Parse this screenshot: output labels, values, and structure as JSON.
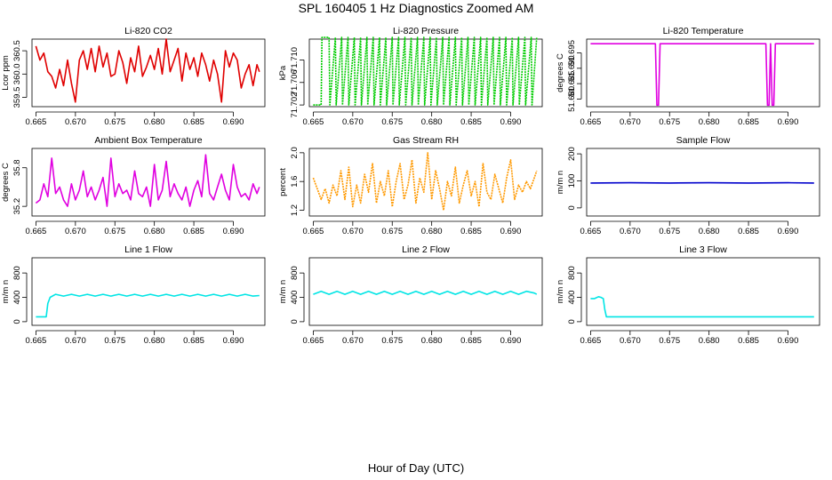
{
  "title": "SPL  160405  1 Hz Diagnostics Zoomed AM",
  "xlabel": "Hour of Day (UTC)",
  "chart_data": [
    {
      "type": "line",
      "title": "Li-820 CO2",
      "ylabel": "Lcor ppm",
      "color": "#e00000",
      "ylim": [
        359.3,
        360.75
      ],
      "yticks": [
        "359.5",
        "360.0",
        "360.5"
      ],
      "ytick_values": [
        359.5,
        360.0,
        360.5
      ],
      "xlim": [
        0.6645,
        0.694
      ],
      "xticks": [
        "0.665",
        "0.670",
        "0.675",
        "0.680",
        "0.685",
        "0.690"
      ],
      "xtick_values": [
        0.665,
        0.67,
        0.675,
        0.68,
        0.685,
        0.69
      ],
      "x": [
        0.665,
        0.6655,
        0.666,
        0.6665,
        0.667,
        0.6675,
        0.668,
        0.6685,
        0.669,
        0.6695,
        0.67,
        0.6705,
        0.671,
        0.6715,
        0.672,
        0.6725,
        0.673,
        0.6735,
        0.674,
        0.6745,
        0.675,
        0.6755,
        0.676,
        0.6765,
        0.677,
        0.6775,
        0.678,
        0.6785,
        0.679,
        0.6795,
        0.68,
        0.6805,
        0.681,
        0.6815,
        0.682,
        0.6825,
        0.683,
        0.6835,
        0.684,
        0.6845,
        0.685,
        0.6855,
        0.686,
        0.6865,
        0.687,
        0.6875,
        0.688,
        0.6885,
        0.689,
        0.6895,
        0.69,
        0.6905,
        0.691,
        0.6915,
        0.692,
        0.6925,
        0.693,
        0.6933
      ],
      "y": [
        360.6,
        360.3,
        360.45,
        360.05,
        359.95,
        359.7,
        360.1,
        359.75,
        360.3,
        359.8,
        359.4,
        360.3,
        360.5,
        360.1,
        360.55,
        360.05,
        360.6,
        360.15,
        360.45,
        359.95,
        360.0,
        360.5,
        360.25,
        359.8,
        360.35,
        360.05,
        360.6,
        359.95,
        360.15,
        360.4,
        360.1,
        360.55,
        360.0,
        360.75,
        360.05,
        360.3,
        360.55,
        359.85,
        360.45,
        360.1,
        360.35,
        359.95,
        360.45,
        360.2,
        359.85,
        360.3,
        360.0,
        359.4,
        360.5,
        360.15,
        360.45,
        360.3,
        359.7,
        360.0,
        360.2,
        359.75,
        360.2,
        360.05
      ]
    },
    {
      "type": "line",
      "title": "Li-820 Pressure",
      "ylabel": "kPa",
      "color": "#00cc00",
      "dashed": true,
      "ylim": [
        71.7017,
        71.7137
      ],
      "yticks": [
        "71.702",
        "71.706",
        "71.710"
      ],
      "ytick_values": [
        71.702,
        71.706,
        71.71
      ],
      "xlim": [
        0.6645,
        0.694
      ],
      "xticks": [
        "0.665",
        "0.670",
        "0.675",
        "0.680",
        "0.685",
        "0.690"
      ],
      "xtick_values": [
        0.665,
        0.67,
        0.675,
        0.68,
        0.685,
        0.69
      ],
      "x": [
        0.665,
        0.666,
        0.6661,
        0.667,
        0.6671,
        0.6678,
        0.6679,
        0.6686,
        0.6687,
        0.6694,
        0.6695,
        0.6702,
        0.6703,
        0.671,
        0.6711,
        0.6718,
        0.6719,
        0.6726,
        0.6727,
        0.6734,
        0.6735,
        0.6742,
        0.6743,
        0.675,
        0.6751,
        0.6758,
        0.6759,
        0.6766,
        0.6767,
        0.6774,
        0.6775,
        0.6782,
        0.6783,
        0.679,
        0.6791,
        0.6798,
        0.6799,
        0.6806,
        0.6807,
        0.6814,
        0.6815,
        0.6822,
        0.6823,
        0.683,
        0.6831,
        0.6838,
        0.6839,
        0.6846,
        0.6847,
        0.6854,
        0.6855,
        0.6862,
        0.6863,
        0.687,
        0.6871,
        0.6878,
        0.6879,
        0.6886,
        0.6887,
        0.6894,
        0.6895,
        0.6902,
        0.6903,
        0.691,
        0.6911,
        0.6918,
        0.6919,
        0.6926,
        0.6927,
        0.6933
      ],
      "y": [
        71.702,
        71.702,
        71.714,
        71.714,
        71.702,
        71.714,
        71.702,
        71.714,
        71.702,
        71.714,
        71.702,
        71.714,
        71.702,
        71.714,
        71.702,
        71.714,
        71.702,
        71.714,
        71.702,
        71.714,
        71.702,
        71.714,
        71.702,
        71.714,
        71.702,
        71.714,
        71.702,
        71.714,
        71.702,
        71.714,
        71.702,
        71.714,
        71.702,
        71.714,
        71.702,
        71.714,
        71.702,
        71.714,
        71.702,
        71.714,
        71.702,
        71.714,
        71.702,
        71.714,
        71.702,
        71.714,
        71.702,
        71.714,
        71.702,
        71.714,
        71.702,
        71.714,
        71.702,
        71.714,
        71.702,
        71.714,
        71.702,
        71.714,
        71.702,
        71.714,
        71.702,
        71.714,
        71.702,
        71.714,
        71.702,
        71.714,
        71.702,
        71.714,
        71.702,
        71.714
      ]
    },
    {
      "type": "line",
      "title": "Li-820 Temperature",
      "ylabel": "degrees C",
      "color": "#e000e0",
      "ylim": [
        51.6775,
        51.6995
      ],
      "yticks": [
        "51.680",
        "51.685",
        "51.690",
        "51.695"
      ],
      "ytick_values": [
        51.68,
        51.685,
        51.69,
        51.695
      ],
      "xlim": [
        0.6645,
        0.694
      ],
      "xticks": [
        "0.665",
        "0.670",
        "0.675",
        "0.680",
        "0.685",
        "0.690"
      ],
      "xtick_values": [
        0.665,
        0.67,
        0.675,
        0.68,
        0.685,
        0.69
      ],
      "x": [
        0.665,
        0.6732,
        0.6734,
        0.6736,
        0.6738,
        0.674,
        0.6872,
        0.6874,
        0.6876,
        0.6878,
        0.688,
        0.6882,
        0.6884,
        0.6933
      ],
      "y": [
        51.698,
        51.698,
        51.678,
        51.678,
        51.698,
        51.698,
        51.698,
        51.678,
        51.678,
        51.698,
        51.678,
        51.678,
        51.698,
        51.698
      ]
    },
    {
      "type": "line",
      "title": "Ambient Box Temperature",
      "ylabel": "degrees C",
      "color": "#e000e0",
      "ylim": [
        35.05,
        36.1
      ],
      "yticks": [
        "35.2",
        "35.8"
      ],
      "ytick_values": [
        35.2,
        35.8
      ],
      "xlim": [
        0.6645,
        0.694
      ],
      "xticks": [
        "0.665",
        "0.670",
        "0.675",
        "0.680",
        "0.685",
        "0.690"
      ],
      "xtick_values": [
        0.665,
        0.67,
        0.675,
        0.68,
        0.685,
        0.69
      ],
      "x": [
        0.665,
        0.6655,
        0.666,
        0.6665,
        0.667,
        0.6675,
        0.668,
        0.6685,
        0.669,
        0.6695,
        0.67,
        0.6705,
        0.671,
        0.6715,
        0.672,
        0.6725,
        0.673,
        0.6735,
        0.674,
        0.6745,
        0.675,
        0.6755,
        0.676,
        0.6765,
        0.677,
        0.6775,
        0.678,
        0.6785,
        0.679,
        0.6795,
        0.68,
        0.6805,
        0.681,
        0.6815,
        0.682,
        0.6825,
        0.683,
        0.6835,
        0.684,
        0.6845,
        0.685,
        0.6855,
        0.686,
        0.6865,
        0.687,
        0.6875,
        0.688,
        0.6885,
        0.689,
        0.6895,
        0.69,
        0.6905,
        0.691,
        0.6915,
        0.692,
        0.6925,
        0.693,
        0.6933
      ],
      "y": [
        35.25,
        35.3,
        35.55,
        35.35,
        35.95,
        35.4,
        35.5,
        35.3,
        35.2,
        35.55,
        35.3,
        35.45,
        35.75,
        35.35,
        35.5,
        35.3,
        35.45,
        35.65,
        35.2,
        35.95,
        35.35,
        35.55,
        35.4,
        35.45,
        35.3,
        35.75,
        35.4,
        35.35,
        35.5,
        35.2,
        35.85,
        35.3,
        35.45,
        35.9,
        35.35,
        35.55,
        35.4,
        35.3,
        35.5,
        35.2,
        35.45,
        35.6,
        35.35,
        36.0,
        35.4,
        35.3,
        35.5,
        35.7,
        35.45,
        35.3,
        35.85,
        35.5,
        35.35,
        35.4,
        35.3,
        35.55,
        35.4,
        35.5
      ]
    },
    {
      "type": "line",
      "title": "Gas Stream RH",
      "ylabel": "percent",
      "color": "#ff9900",
      "dashed": true,
      "ylim": [
        1.12,
        2.06
      ],
      "yticks": [
        "1.2",
        "1.6",
        "2.0"
      ],
      "ytick_values": [
        1.2,
        1.6,
        2.0
      ],
      "xlim": [
        0.6645,
        0.694
      ],
      "xticks": [
        "0.665",
        "0.670",
        "0.675",
        "0.680",
        "0.685",
        "0.690"
      ],
      "xtick_values": [
        0.665,
        0.67,
        0.675,
        0.68,
        0.685,
        0.69
      ],
      "x": [
        0.665,
        0.6655,
        0.666,
        0.6665,
        0.667,
        0.6675,
        0.668,
        0.6685,
        0.669,
        0.6695,
        0.67,
        0.6705,
        0.671,
        0.6715,
        0.672,
        0.6725,
        0.673,
        0.6735,
        0.674,
        0.6745,
        0.675,
        0.6755,
        0.676,
        0.6765,
        0.677,
        0.6775,
        0.678,
        0.6785,
        0.679,
        0.6795,
        0.68,
        0.6805,
        0.681,
        0.6815,
        0.682,
        0.6825,
        0.683,
        0.6835,
        0.684,
        0.6845,
        0.685,
        0.6855,
        0.686,
        0.6865,
        0.687,
        0.6875,
        0.688,
        0.6885,
        0.689,
        0.6895,
        0.69,
        0.6905,
        0.691,
        0.6915,
        0.692,
        0.6925,
        0.693,
        0.6933
      ],
      "y": [
        1.65,
        1.5,
        1.35,
        1.5,
        1.3,
        1.55,
        1.4,
        1.75,
        1.35,
        1.8,
        1.25,
        1.55,
        1.3,
        1.7,
        1.45,
        1.85,
        1.3,
        1.6,
        1.4,
        1.75,
        1.25,
        1.6,
        1.85,
        1.35,
        1.55,
        1.9,
        1.3,
        1.65,
        1.45,
        2.0,
        1.35,
        1.75,
        1.5,
        1.2,
        1.6,
        1.4,
        1.8,
        1.3,
        1.55,
        1.75,
        1.4,
        1.6,
        1.25,
        1.85,
        1.45,
        1.35,
        1.7,
        1.5,
        1.3,
        1.65,
        1.9,
        1.35,
        1.55,
        1.45,
        1.6,
        1.5,
        1.65,
        1.75
      ]
    },
    {
      "type": "line",
      "title": "Sample Flow",
      "ylabel": "m/m n",
      "color": "#0000cc",
      "ylim": [
        -30,
        220
      ],
      "yticks": [
        "0",
        "100",
        "200"
      ],
      "ytick_values": [
        0,
        100,
        200
      ],
      "xlim": [
        0.6645,
        0.694
      ],
      "xticks": [
        "0.665",
        "0.670",
        "0.675",
        "0.680",
        "0.685",
        "0.690"
      ],
      "xtick_values": [
        0.665,
        0.67,
        0.675,
        0.68,
        0.685,
        0.69
      ],
      "x": [
        0.665,
        0.67,
        0.675,
        0.68,
        0.685,
        0.69,
        0.6933
      ],
      "y": [
        92,
        93,
        92,
        93,
        92,
        93,
        92
      ]
    },
    {
      "type": "line",
      "title": "Line 1 Flow",
      "ylabel": "m/m n",
      "color": "#00e5e5",
      "ylim": [
        -60,
        1050
      ],
      "yticks": [
        "0",
        "400",
        "800"
      ],
      "ytick_values": [
        0,
        400,
        800
      ],
      "xlim": [
        0.6645,
        0.694
      ],
      "xticks": [
        "0.665",
        "0.670",
        "0.675",
        "0.680",
        "0.685",
        "0.690"
      ],
      "xtick_values": [
        0.665,
        0.67,
        0.675,
        0.68,
        0.685,
        0.69
      ],
      "x": [
        0.665,
        0.6663,
        0.6665,
        0.6668,
        0.6675,
        0.6685,
        0.6695,
        0.6705,
        0.6715,
        0.6725,
        0.6735,
        0.6745,
        0.6755,
        0.6765,
        0.6775,
        0.6785,
        0.6795,
        0.6805,
        0.6815,
        0.6825,
        0.6835,
        0.6845,
        0.6855,
        0.6865,
        0.6875,
        0.6885,
        0.6895,
        0.6905,
        0.6915,
        0.6925,
        0.6933
      ],
      "y": [
        80,
        80,
        300,
        400,
        450,
        420,
        450,
        420,
        450,
        420,
        450,
        420,
        450,
        420,
        450,
        420,
        450,
        420,
        450,
        420,
        450,
        420,
        450,
        420,
        450,
        420,
        450,
        420,
        450,
        420,
        430
      ]
    },
    {
      "type": "line",
      "title": "Line 2 Flow",
      "ylabel": "m/m n",
      "color": "#00e5e5",
      "ylim": [
        -60,
        1050
      ],
      "yticks": [
        "0",
        "400",
        "800"
      ],
      "ytick_values": [
        0,
        400,
        800
      ],
      "xlim": [
        0.6645,
        0.694
      ],
      "xticks": [
        "0.665",
        "0.670",
        "0.675",
        "0.680",
        "0.685",
        "0.690"
      ],
      "xtick_values": [
        0.665,
        0.67,
        0.675,
        0.68,
        0.685,
        0.69
      ],
      "x": [
        0.665,
        0.666,
        0.667,
        0.668,
        0.669,
        0.67,
        0.671,
        0.672,
        0.673,
        0.674,
        0.675,
        0.676,
        0.677,
        0.678,
        0.679,
        0.68,
        0.681,
        0.682,
        0.683,
        0.684,
        0.685,
        0.686,
        0.687,
        0.688,
        0.689,
        0.69,
        0.691,
        0.692,
        0.693,
        0.6933
      ],
      "y": [
        450,
        500,
        450,
        500,
        450,
        500,
        450,
        500,
        450,
        500,
        450,
        500,
        450,
        500,
        450,
        500,
        450,
        500,
        450,
        500,
        450,
        500,
        450,
        500,
        450,
        500,
        450,
        500,
        470,
        450
      ]
    },
    {
      "type": "line",
      "title": "Line 3 Flow",
      "ylabel": "m/m n",
      "color": "#00e5e5",
      "ylim": [
        -60,
        1050
      ],
      "yticks": [
        "0",
        "400",
        "800"
      ],
      "ytick_values": [
        0,
        400,
        800
      ],
      "xlim": [
        0.6645,
        0.694
      ],
      "xticks": [
        "0.665",
        "0.670",
        "0.675",
        "0.680",
        "0.685",
        "0.690"
      ],
      "xtick_values": [
        0.665,
        0.67,
        0.675,
        0.68,
        0.685,
        0.69
      ],
      "x": [
        0.665,
        0.6655,
        0.666,
        0.6663,
        0.6666,
        0.6668,
        0.667,
        0.67,
        0.675,
        0.68,
        0.685,
        0.69,
        0.6933
      ],
      "y": [
        380,
        380,
        410,
        400,
        380,
        200,
        80,
        80,
        80,
        80,
        80,
        80,
        80
      ]
    }
  ]
}
